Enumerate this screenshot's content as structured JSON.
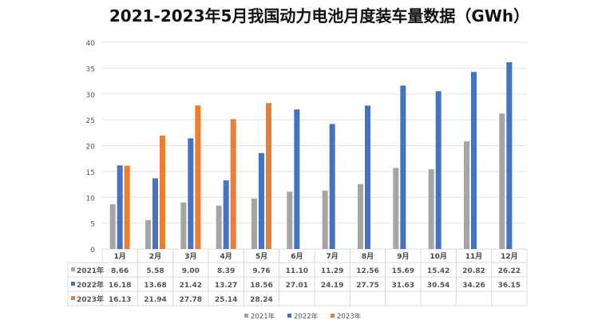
{
  "chart_data": {
    "type": "bar",
    "title": "2021-2023年5月我国动力电池月度装车量数据（GWh）",
    "xlabel": "",
    "ylabel": "",
    "ylim": [
      0,
      40
    ],
    "yticks": [
      0,
      5,
      10,
      15,
      20,
      25,
      30,
      35,
      40
    ],
    "grid": true,
    "legend_position": "bottom",
    "categories": [
      "1月",
      "2月",
      "3月",
      "4月",
      "5月",
      "6月",
      "7月",
      "8月",
      "9月",
      "10月",
      "11月",
      "12月"
    ],
    "series": [
      {
        "name": "2021年",
        "color": "#a5a5a5",
        "values": [
          8.66,
          5.58,
          9.0,
          8.39,
          9.76,
          11.1,
          11.29,
          12.56,
          15.69,
          15.42,
          20.82,
          26.22
        ],
        "labels": [
          "8.66",
          "5.58",
          "9.00",
          "8.39",
          "9.76",
          "11.10",
          "11.29",
          "12.56",
          "15.69",
          "15.42",
          "20.82",
          "26.22"
        ]
      },
      {
        "name": "2022年",
        "color": "#4472c4",
        "values": [
          16.18,
          13.68,
          21.42,
          13.27,
          18.56,
          27.01,
          24.19,
          27.75,
          31.63,
          30.54,
          34.26,
          36.15
        ],
        "labels": [
          "16.18",
          "13.68",
          "21.42",
          "13.27",
          "18.56",
          "27.01",
          "24.19",
          "27.75",
          "31.63",
          "30.54",
          "34.26",
          "36.15"
        ]
      },
      {
        "name": "2023年",
        "color": "#ed7d31",
        "values": [
          16.13,
          21.94,
          27.78,
          25.14,
          28.24,
          null,
          null,
          null,
          null,
          null,
          null,
          null
        ],
        "labels": [
          "16.13",
          "21.94",
          "27.78",
          "25.14",
          "28.24",
          "",
          "",
          "",
          "",
          "",
          "",
          ""
        ]
      }
    ]
  }
}
